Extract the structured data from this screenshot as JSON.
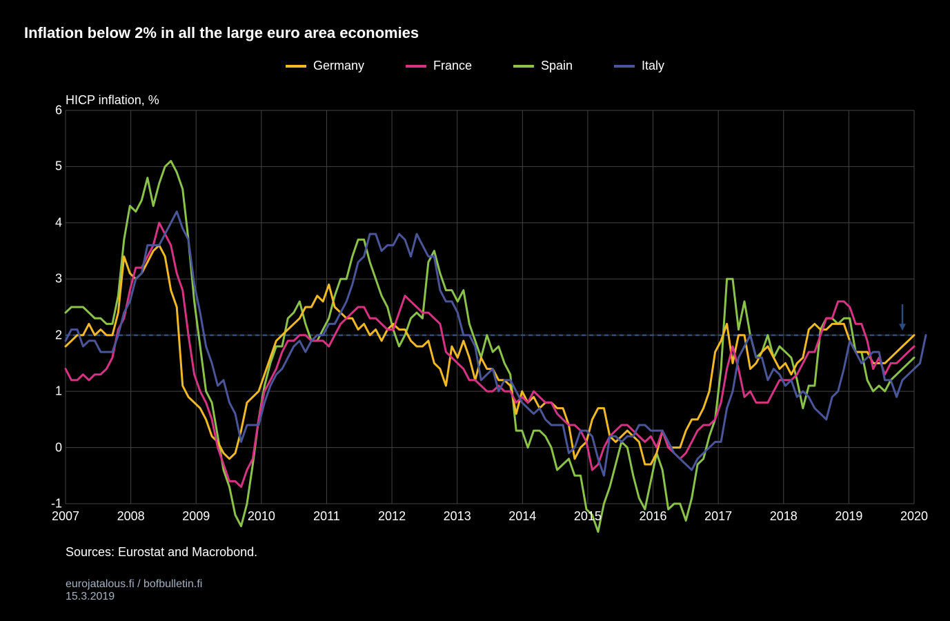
{
  "title": "Inflation below 2% in all the large euro area economies",
  "ylabel": "HICP inflation, %",
  "source": "Sources: Eurostat and Macrobond.",
  "footer_line1": "eurojatalous.fi / bofbulletin.fi",
  "footer_line2": "15.3.2019",
  "chart": {
    "type": "line",
    "background_color": "#000000",
    "text_color": "#ffffff",
    "grid_color": "#444444",
    "reference_line_color": "#2c4d7a",
    "reference_line_dash": "6,5",
    "reference_value": 2.0,
    "line_width": 3,
    "title_fontsize": 22,
    "legend_fontsize": 18,
    "label_fontsize": 18,
    "tick_fontsize": 18,
    "footer_fontsize": 16,
    "ylim": [
      -1,
      6
    ],
    "ytick_step": 1,
    "yticks": [
      6,
      5,
      4,
      3,
      2,
      1,
      0,
      -1
    ],
    "xlim": [
      2007,
      2020
    ],
    "xticks": [
      2007,
      2008,
      2009,
      2010,
      2011,
      2012,
      2013,
      2014,
      2015,
      2016,
      2017,
      2018,
      2019,
      2020
    ],
    "n_points": 146,
    "arrow": {
      "x_index": 143,
      "y_from": 2.55,
      "y_to": 2.08,
      "color": "#2c4d7a"
    },
    "legend": [
      {
        "label": "Germany",
        "color": "#f2b927"
      },
      {
        "label": "France",
        "color": "#d63384"
      },
      {
        "label": "Spain",
        "color": "#8bc34a"
      },
      {
        "label": "Italy",
        "color": "#4a5699"
      }
    ],
    "series": {
      "germany": {
        "color": "#f2b927",
        "values": [
          1.8,
          1.9,
          2.0,
          2.0,
          2.2,
          2.0,
          2.1,
          2.0,
          2.0,
          2.4,
          3.4,
          3.1,
          3.0,
          3.1,
          3.3,
          3.5,
          3.6,
          3.4,
          2.8,
          2.5,
          1.1,
          0.9,
          0.8,
          0.7,
          0.5,
          0.2,
          0.1,
          -0.1,
          -0.2,
          -0.1,
          0.3,
          0.8,
          0.9,
          1.0,
          1.3,
          1.6,
          1.9,
          2.0,
          2.1,
          2.2,
          2.3,
          2.5,
          2.5,
          2.7,
          2.6,
          2.9,
          2.5,
          2.4,
          2.3,
          2.3,
          2.1,
          2.2,
          2.0,
          2.1,
          1.9,
          2.1,
          2.2,
          2.1,
          2.1,
          1.9,
          1.8,
          1.8,
          1.9,
          1.5,
          1.4,
          1.1,
          1.8,
          1.6,
          1.9,
          1.6,
          1.2,
          1.6,
          1.4,
          1.4,
          1.2,
          1.2,
          1.1,
          0.6,
          1.0,
          0.8,
          0.9,
          0.7,
          0.8,
          0.8,
          0.7,
          0.7,
          0.4,
          -0.2,
          0.0,
          0.1,
          0.5,
          0.7,
          0.7,
          0.2,
          0.1,
          0.2,
          0.3,
          0.2,
          0.1,
          -0.3,
          -0.3,
          -0.1,
          0.3,
          0.0,
          0.0,
          0.0,
          0.3,
          0.5,
          0.5,
          0.7,
          1.0,
          1.7,
          1.9,
          2.2,
          1.5,
          2.0,
          2.0,
          1.4,
          1.5,
          1.7,
          1.8,
          1.6,
          1.4,
          1.5,
          1.3,
          1.5,
          1.6,
          2.1,
          2.2,
          2.1,
          2.1,
          2.2,
          2.2,
          2.2,
          1.9,
          1.7,
          1.7,
          1.7,
          1.5,
          1.5,
          1.5,
          1.6,
          1.7,
          1.8,
          1.9,
          2.0
        ]
      },
      "france": {
        "color": "#d63384",
        "values": [
          1.4,
          1.2,
          1.2,
          1.3,
          1.2,
          1.3,
          1.3,
          1.4,
          1.6,
          2.1,
          2.3,
          2.8,
          3.2,
          3.2,
          3.4,
          3.6,
          4.0,
          3.8,
          3.6,
          3.1,
          2.8,
          2.0,
          1.3,
          1.0,
          0.8,
          0.5,
          0.0,
          -0.3,
          -0.6,
          -0.6,
          -0.7,
          -0.4,
          -0.2,
          0.5,
          1.0,
          1.2,
          1.4,
          1.7,
          1.9,
          1.9,
          2.0,
          2.0,
          1.9,
          1.9,
          1.9,
          1.8,
          2.0,
          2.2,
          2.3,
          2.4,
          2.5,
          2.5,
          2.3,
          2.3,
          2.2,
          2.1,
          2.1,
          2.4,
          2.7,
          2.6,
          2.5,
          2.4,
          2.4,
          2.3,
          2.2,
          1.7,
          1.6,
          1.5,
          1.4,
          1.2,
          1.2,
          1.1,
          1.0,
          1.0,
          1.1,
          1.0,
          1.0,
          0.8,
          0.9,
          0.8,
          1.0,
          0.9,
          0.8,
          0.8,
          0.6,
          0.5,
          0.4,
          0.4,
          0.3,
          0.1,
          -0.4,
          -0.3,
          0.0,
          0.2,
          0.3,
          0.4,
          0.4,
          0.3,
          0.2,
          0.1,
          0.2,
          0.0,
          0.3,
          0.0,
          -0.1,
          -0.2,
          -0.1,
          0.1,
          0.3,
          0.4,
          0.4,
          0.5,
          0.8,
          1.4,
          1.8,
          1.4,
          0.9,
          1.0,
          0.8,
          0.8,
          0.8,
          1.0,
          1.2,
          1.2,
          1.2,
          1.3,
          1.5,
          1.7,
          1.7,
          2.0,
          2.3,
          2.3,
          2.6,
          2.6,
          2.5,
          2.2,
          2.2,
          1.9,
          1.4,
          1.6,
          1.3,
          1.5,
          1.5,
          1.6,
          1.7,
          1.8
        ]
      },
      "spain": {
        "color": "#8bc34a",
        "values": [
          2.4,
          2.5,
          2.5,
          2.5,
          2.4,
          2.3,
          2.3,
          2.2,
          2.2,
          2.7,
          3.7,
          4.3,
          4.2,
          4.4,
          4.8,
          4.3,
          4.7,
          5.0,
          5.1,
          4.9,
          4.6,
          3.7,
          2.6,
          1.8,
          1.0,
          0.8,
          0.2,
          -0.4,
          -0.7,
          -1.2,
          -1.4,
          -1.0,
          -0.3,
          0.5,
          1.1,
          1.5,
          1.8,
          1.8,
          2.3,
          2.4,
          2.6,
          2.2,
          1.9,
          1.9,
          2.1,
          2.3,
          2.7,
          3.0,
          3.0,
          3.4,
          3.7,
          3.7,
          3.3,
          3.0,
          2.7,
          2.5,
          2.1,
          1.8,
          2.0,
          2.3,
          2.4,
          2.3,
          3.3,
          3.5,
          3.1,
          2.8,
          2.8,
          2.6,
          2.8,
          2.2,
          1.9,
          1.6,
          2.0,
          1.7,
          1.8,
          1.5,
          1.3,
          0.3,
          0.3,
          0.0,
          0.3,
          0.3,
          0.2,
          0.0,
          -0.4,
          -0.3,
          -0.2,
          -0.5,
          -0.5,
          -1.1,
          -1.2,
          -1.5,
          -1.0,
          -0.7,
          -0.3,
          0.1,
          0.0,
          -0.5,
          -0.9,
          -1.1,
          -0.6,
          -0.1,
          -0.4,
          -1.1,
          -1.0,
          -1.0,
          -1.3,
          -0.9,
          -0.3,
          -0.2,
          0.2,
          0.5,
          1.4,
          3.0,
          3.0,
          2.1,
          2.6,
          2.0,
          1.6,
          1.7,
          2.0,
          1.6,
          1.8,
          1.7,
          1.6,
          1.2,
          0.7,
          1.1,
          1.1,
          2.1,
          2.3,
          2.3,
          2.2,
          2.3,
          2.3,
          1.7,
          1.7,
          1.2,
          1.0,
          1.1,
          1.0,
          1.2,
          1.3,
          1.4,
          1.5,
          1.6
        ]
      },
      "italy": {
        "color": "#4a5699",
        "values": [
          1.9,
          2.1,
          2.1,
          1.8,
          1.9,
          1.9,
          1.7,
          1.7,
          1.7,
          2.0,
          2.4,
          2.6,
          3.0,
          3.1,
          3.6,
          3.6,
          3.6,
          3.8,
          4.0,
          4.2,
          3.9,
          3.7,
          2.9,
          2.4,
          1.8,
          1.5,
          1.1,
          1.2,
          0.8,
          0.6,
          0.1,
          0.4,
          0.4,
          0.4,
          0.8,
          1.1,
          1.3,
          1.4,
          1.6,
          1.8,
          1.9,
          1.7,
          1.9,
          2.0,
          2.0,
          2.2,
          2.2,
          2.4,
          2.6,
          2.9,
          3.3,
          3.4,
          3.8,
          3.8,
          3.5,
          3.6,
          3.6,
          3.8,
          3.7,
          3.4,
          3.8,
          3.6,
          3.4,
          3.4,
          2.8,
          2.6,
          2.6,
          2.4,
          2.0,
          2.0,
          1.8,
          1.2,
          1.3,
          1.4,
          1.0,
          1.2,
          1.2,
          1.0,
          0.8,
          0.7,
          0.6,
          0.7,
          0.5,
          0.4,
          0.4,
          0.4,
          -0.1,
          0.0,
          0.3,
          0.3,
          0.2,
          -0.2,
          -0.5,
          0.2,
          0.2,
          0.1,
          0.2,
          0.2,
          0.4,
          0.4,
          0.3,
          0.3,
          0.3,
          0.1,
          -0.1,
          -0.2,
          -0.3,
          -0.4,
          -0.2,
          -0.1,
          0.0,
          0.1,
          0.1,
          0.7,
          1.0,
          1.6,
          1.8,
          2.0,
          1.6,
          1.6,
          1.2,
          1.4,
          1.3,
          1.1,
          1.2,
          0.9,
          1.0,
          0.9,
          0.7,
          0.6,
          0.5,
          0.9,
          1.0,
          1.4,
          1.9,
          1.7,
          1.5,
          1.6,
          1.7,
          1.7,
          1.2,
          1.2,
          0.9,
          1.2,
          1.3,
          1.4,
          1.5,
          2.0
        ]
      }
    }
  }
}
